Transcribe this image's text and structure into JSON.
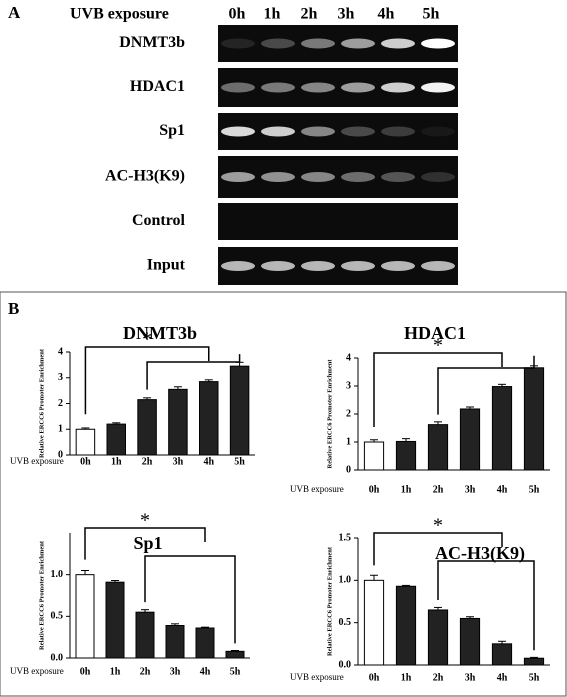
{
  "panel_a": {
    "label": "A",
    "exposure_label": "UVB exposure",
    "times": [
      "0h",
      "1h",
      "2h",
      "3h",
      "4h",
      "5h"
    ],
    "rows": [
      "DNMT3b",
      "HDAC1",
      "Sp1",
      "AC-H3(K9)",
      "Control",
      "Input"
    ]
  },
  "panel_b": {
    "label": "B"
  },
  "chart_data": [
    {
      "type": "bar",
      "title": "DNMT3b",
      "ylabel": "Relative ERCC6 Promoter Enrichment",
      "xlabel": "UVB exposure",
      "categories": [
        "0h",
        "1h",
        "2h",
        "3h",
        "4h",
        "5h"
      ],
      "values": [
        1.0,
        1.2,
        2.15,
        2.55,
        2.85,
        3.45
      ],
      "errors": [
        0.05,
        0.05,
        0.07,
        0.1,
        0.07,
        0.15
      ],
      "colors": [
        "#ffffff",
        "#222222",
        "#222222",
        "#222222",
        "#222222",
        "#222222"
      ],
      "ylim": [
        0,
        4
      ],
      "yticks": [
        0,
        1,
        2,
        3,
        4
      ],
      "annotation": "*"
    },
    {
      "type": "bar",
      "title": "HDAC1",
      "ylabel": "Relative ERCC6 Promoter Enrichment",
      "xlabel": "UVB exposure",
      "categories": [
        "0h",
        "1h",
        "2h",
        "3h",
        "4h",
        "5h"
      ],
      "values": [
        1.0,
        1.02,
        1.62,
        2.18,
        2.98,
        3.65
      ],
      "errors": [
        0.08,
        0.1,
        0.1,
        0.07,
        0.08,
        0.07
      ],
      "colors": [
        "#ffffff",
        "#222222",
        "#222222",
        "#222222",
        "#222222",
        "#222222"
      ],
      "ylim": [
        0,
        4
      ],
      "yticks": [
        0,
        1,
        2,
        3,
        4
      ],
      "annotation": "*"
    },
    {
      "type": "bar",
      "title": "Sp1",
      "ylabel": "Relative ERCC6 Promoter Enrichment",
      "xlabel": "UVB exposure",
      "categories": [
        "0h",
        "1h",
        "2h",
        "3h",
        "4h",
        "5h"
      ],
      "values": [
        1.0,
        0.91,
        0.55,
        0.39,
        0.36,
        0.08
      ],
      "errors": [
        0.05,
        0.02,
        0.03,
        0.02,
        0.01,
        0.01
      ],
      "colors": [
        "#ffffff",
        "#222222",
        "#222222",
        "#222222",
        "#222222",
        "#222222"
      ],
      "ylim": [
        0,
        1.5
      ],
      "yticks": [
        {
          "value": 0,
          "label": "0.0"
        },
        {
          "value": 0.5,
          "label": "0.5"
        },
        {
          "value": 1,
          "label": "1.0"
        }
      ],
      "annotation": "*"
    },
    {
      "type": "bar",
      "title": "AC-H3(K9)",
      "ylabel": "Relative ERCC6 Promoter Enrichment",
      "xlabel": "UVB exposure",
      "categories": [
        "0h",
        "1h",
        "2h",
        "3h",
        "4h",
        "5h"
      ],
      "values": [
        1.0,
        0.93,
        0.65,
        0.55,
        0.25,
        0.08
      ],
      "errors": [
        0.06,
        0.01,
        0.03,
        0.02,
        0.03,
        0.01
      ],
      "colors": [
        "#ffffff",
        "#222222",
        "#222222",
        "#222222",
        "#222222",
        "#222222"
      ],
      "ylim": [
        0,
        1.5
      ],
      "yticks": [
        {
          "value": 0,
          "label": "0.0"
        },
        {
          "value": 0.5,
          "label": "0.5"
        },
        {
          "value": 1,
          "label": "1.0"
        },
        {
          "value": 1.5,
          "label": "1.5"
        }
      ],
      "annotation": "*"
    }
  ]
}
